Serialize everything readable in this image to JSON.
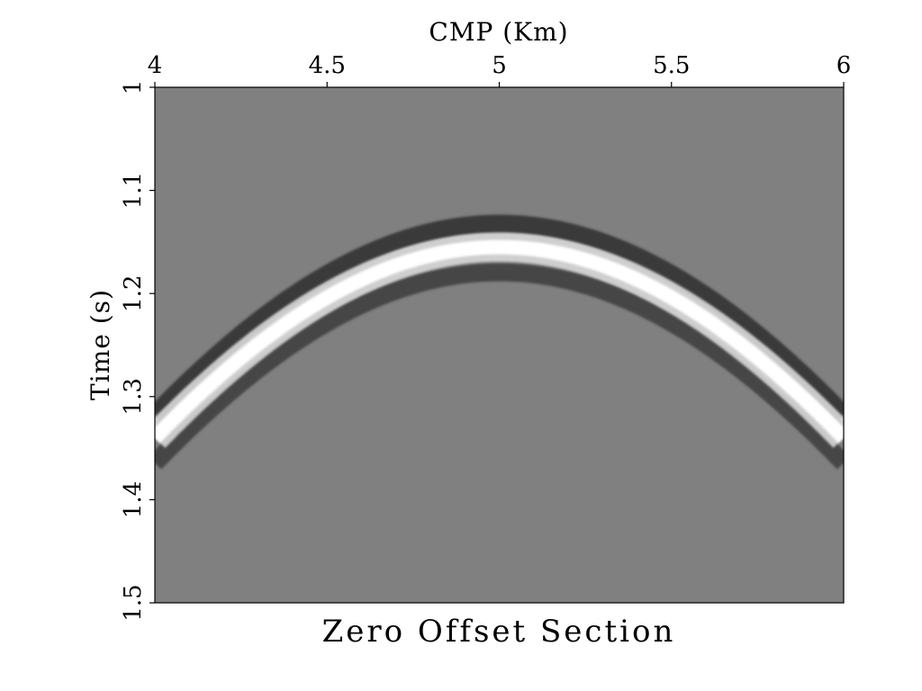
{
  "chart_data": {
    "type": "heatmap",
    "title": "Zero Offset Section",
    "xlabel": "CMP (Km)",
    "ylabel": "Time (s)",
    "x_axis_position": "top",
    "xlim": [
      4,
      6
    ],
    "ylim": [
      1.0,
      1.5
    ],
    "y_inverted": true,
    "x_ticks": [
      4,
      4.5,
      5,
      5.5,
      6
    ],
    "x_tick_labels": [
      "4",
      "4.5",
      "5",
      "5.5",
      "6"
    ],
    "y_ticks": [
      1.0,
      1.1,
      1.2,
      1.3,
      1.4,
      1.5
    ],
    "y_tick_labels": [
      "1",
      "1.1",
      "1.2",
      "1.3",
      "1.4",
      "1.5"
    ],
    "colormap": "grayscale",
    "event": {
      "shape": "diffraction hyperbola",
      "apex_cmp_km": 5.0,
      "apex_time_s": 1.155,
      "time_at_cmp_4_s": 1.34,
      "time_at_cmp_6_s": 1.34,
      "polarity": "bright peak flanked by dark troughs"
    },
    "grid": false,
    "legend": "none"
  }
}
